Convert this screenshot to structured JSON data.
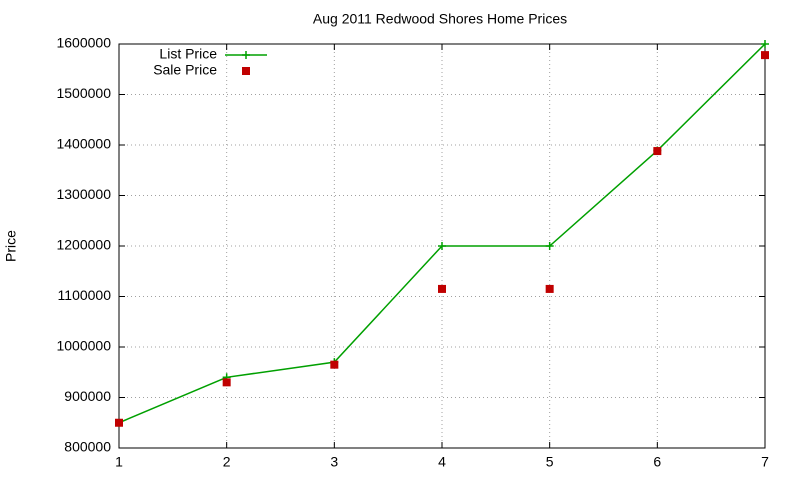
{
  "chart_data": {
    "type": "line",
    "title": "Aug 2011 Redwood Shores Home Prices",
    "y_label": "Price",
    "x": [
      1,
      2,
      3,
      4,
      5,
      6,
      7
    ],
    "series": [
      {
        "name": "List Price",
        "color": "#00a000",
        "style": "linespoints",
        "marker": "plus",
        "values": [
          850000,
          940000,
          970000,
          1200000,
          1200000,
          1389000,
          1600000
        ]
      },
      {
        "name": "Sale Price",
        "color": "#c00000",
        "style": "points",
        "marker": "square",
        "values": [
          850000,
          930000,
          965000,
          1115000,
          1115000,
          1388000,
          1578000
        ]
      }
    ],
    "xlim": [
      1,
      7
    ],
    "xticks": [
      1,
      2,
      3,
      4,
      5,
      6,
      7
    ],
    "ylim": [
      800000,
      1600000
    ],
    "yticks": [
      800000,
      900000,
      1000000,
      1100000,
      1200000,
      1300000,
      1400000,
      1500000,
      1600000
    ],
    "grid": true,
    "legend": "top-left"
  }
}
